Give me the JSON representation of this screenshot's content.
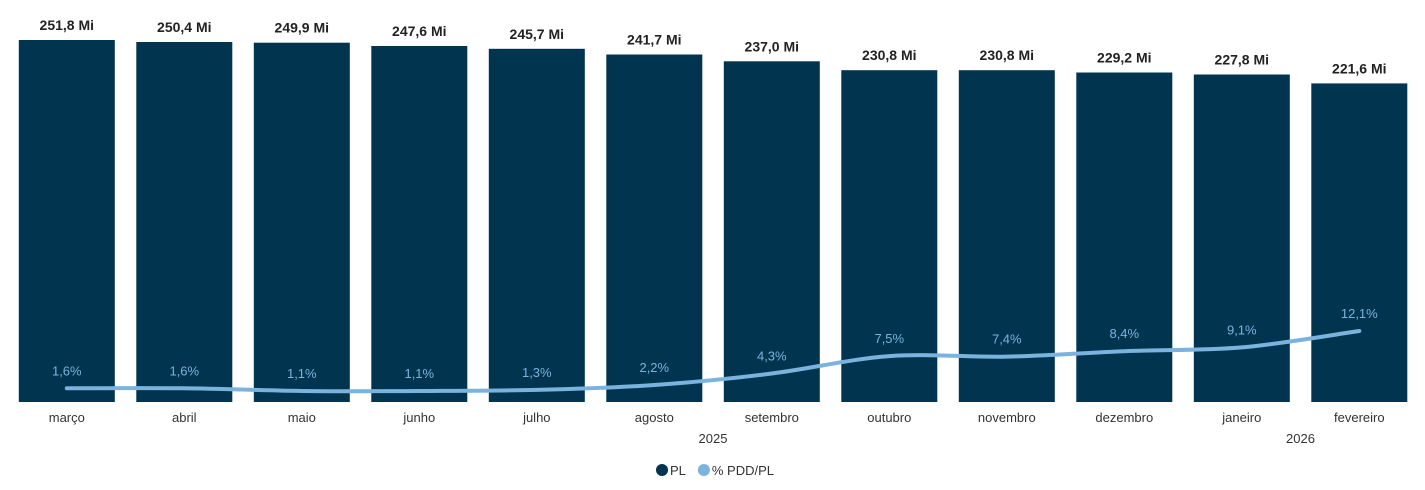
{
  "chart_data": {
    "type": "bar",
    "categories": [
      "março",
      "abril",
      "maio",
      "junho",
      "julho",
      "agosto",
      "setembro",
      "outubro",
      "novembro",
      "dezembro",
      "janeiro",
      "fevereiro"
    ],
    "series": [
      {
        "name": "PL",
        "kind": "bar",
        "color": "#01344f",
        "values": [
          251.8,
          250.4,
          249.9,
          247.6,
          245.7,
          241.7,
          237.0,
          230.8,
          230.8,
          229.2,
          227.8,
          221.6
        ],
        "labels": [
          "251,8 Mi",
          "250,4 Mi",
          "249,9 Mi",
          "247,6 Mi",
          "245,7 Mi",
          "241,7 Mi",
          "237,0 Mi",
          "230,8 Mi",
          "230,8 Mi",
          "229,2 Mi",
          "227,8 Mi",
          "221,6 Mi"
        ]
      },
      {
        "name": "% PDD/PL",
        "kind": "line",
        "color": "#7ab3dd",
        "values": [
          1.6,
          1.6,
          1.1,
          1.1,
          1.3,
          2.2,
          4.3,
          7.5,
          7.4,
          8.4,
          9.1,
          12.1
        ],
        "labels": [
          "1,6%",
          "1,6%",
          "1,1%",
          "1,1%",
          "1,3%",
          "2,2%",
          "4,3%",
          "7,5%",
          "7,4%",
          "8,4%",
          "9,1%",
          "12,1%"
        ]
      }
    ],
    "year_labels": [
      {
        "text": "2025",
        "category_index": 5.5
      },
      {
        "text": "2026",
        "category_index": 10.5
      }
    ],
    "legend": {
      "position": "bottom",
      "items": [
        "PL",
        "% PDD/PL"
      ]
    },
    "grid": false,
    "ylim_bar": [
      0,
      251.8
    ],
    "ylim_line": [
      0,
      12.1
    ]
  }
}
